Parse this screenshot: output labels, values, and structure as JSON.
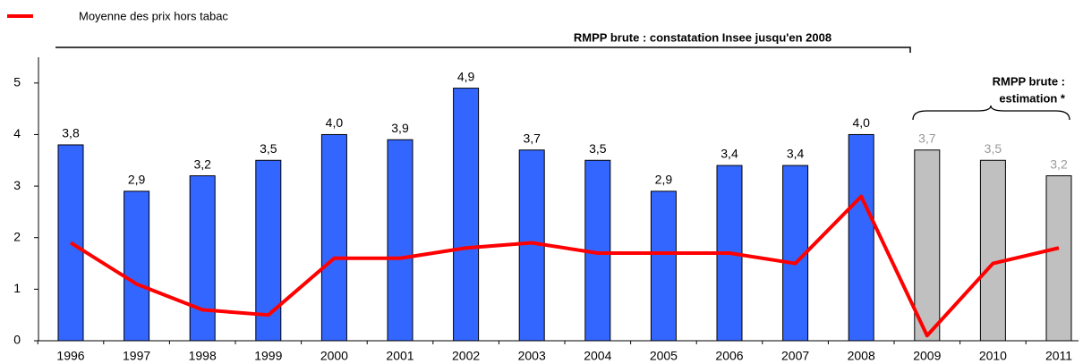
{
  "chart_data": {
    "type": "bar",
    "categories": [
      "1996",
      "1997",
      "1998",
      "1999",
      "2000",
      "2001",
      "2002",
      "2003",
      "2004",
      "2005",
      "2006",
      "2007",
      "2008",
      "2009",
      "2010",
      "2011"
    ],
    "series": [
      {
        "type": "bar",
        "values": [
          3.8,
          2.9,
          3.2,
          3.5,
          4.0,
          3.9,
          4.9,
          3.7,
          3.5,
          2.9,
          3.4,
          3.4,
          4.0,
          3.7,
          3.5,
          3.2
        ],
        "value_labels": [
          "3,8",
          "2,9",
          "3,2",
          "3,5",
          "4,0",
          "3,9",
          "4,9",
          "3,7",
          "3,5",
          "2,9",
          "3,4",
          "3,4",
          "4,0",
          "3,7",
          "3,5",
          "3,2"
        ],
        "colors": [
          "#3366ff",
          "#3366ff",
          "#3366ff",
          "#3366ff",
          "#3366ff",
          "#3366ff",
          "#3366ff",
          "#3366ff",
          "#3366ff",
          "#3366ff",
          "#3366ff",
          "#3366ff",
          "#3366ff",
          "#c0c0c0",
          "#c0c0c0",
          "#c0c0c0"
        ],
        "value_label_colors": [
          "#000",
          "#000",
          "#000",
          "#000",
          "#000",
          "#000",
          "#000",
          "#000",
          "#000",
          "#000",
          "#000",
          "#000",
          "#000",
          "#999",
          "#999",
          "#999"
        ]
      },
      {
        "type": "line",
        "name": "Moyenne des prix hors tabac",
        "color": "#ff0000",
        "values": [
          1.9,
          1.1,
          0.6,
          0.5,
          1.6,
          1.6,
          1.8,
          1.9,
          1.7,
          1.7,
          1.7,
          1.5,
          2.8,
          0.1,
          1.5,
          1.8
        ]
      }
    ],
    "ylim": [
      0,
      5.5
    ],
    "yticks": [
      0,
      1,
      2,
      3,
      4,
      5
    ],
    "grid": false,
    "legend": "top-left",
    "annotations": [
      "RMPP brute : constatation Insee jusqu'en 2008",
      "RMPP brute :",
      "estimation *",
      "**"
    ]
  }
}
